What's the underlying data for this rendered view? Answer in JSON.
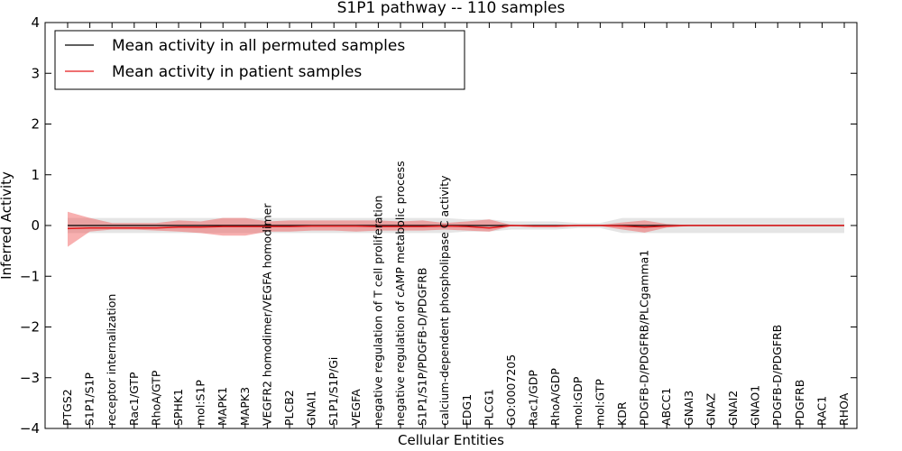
{
  "chart_data": {
    "type": "line",
    "title": "S1P1 pathway -- 110 samples",
    "xlabel": "Cellular Entities",
    "ylabel": "Inferred Activity",
    "ylim": [
      -4,
      4
    ],
    "yticks": [
      -4,
      -3,
      -2,
      -1,
      0,
      1,
      2,
      3,
      4
    ],
    "ytick_labels": [
      "−4",
      "−3",
      "−2",
      "−1",
      "0",
      "1",
      "2",
      "3",
      "4"
    ],
    "reference_line": 0,
    "legend": {
      "position": "top-left",
      "entries": [
        {
          "label": "Mean activity in all permuted samples",
          "color": "#000000"
        },
        {
          "label": "Mean activity in patient samples",
          "color": "#e31a1c"
        }
      ]
    },
    "categories": [
      "PTGS2",
      "S1P1/S1P",
      "receptor internalization",
      "Rac1/GTP",
      "RhoA/GTP",
      "SPHK1",
      "mol:S1P",
      "MAPK1",
      "MAPK3",
      "VEGFR2 homodimer/VEGFA homodimer",
      "PLCB2",
      "GNAI1",
      "S1P1/S1P/Gi",
      "VEGFA",
      "negative regulation of T cell proliferation",
      "negative regulation of cAMP metabolic process",
      "S1P1/S1P/PDGFB-D/PDGFRB",
      "calcium-dependent phospholipase C activity",
      "EDG1",
      "PLCG1",
      "GO:0007205",
      "Rac1/GDP",
      "RhoA/GDP",
      "mol:GDP",
      "mol:GTP",
      "KDR",
      "PDGFB-D/PDGFRB/PLCgamma1",
      "ABCC1",
      "GNAI3",
      "GNAZ",
      "GNAI2",
      "GNAO1",
      "PDGFB-D/PDGFRB",
      "PDGFRB",
      "RAC1",
      "RHOA"
    ],
    "series": [
      {
        "name": "Mean activity in all permuted samples",
        "color": "#000000",
        "values": [
          0.0,
          0.0,
          0.0,
          0.0,
          0.0,
          0.0,
          0.0,
          0.0,
          0.0,
          0.0,
          0.0,
          0.0,
          0.0,
          0.0,
          0.0,
          0.0,
          0.0,
          0.0,
          0.0,
          0.0,
          0.0,
          0.0,
          0.0,
          0.0,
          0.0,
          0.0,
          0.0,
          0.0,
          0.0,
          0.0,
          0.0,
          0.0,
          0.0,
          0.0,
          0.0,
          0.0
        ],
        "lower": [
          -0.15,
          -0.15,
          -0.15,
          -0.15,
          -0.15,
          -0.15,
          -0.15,
          -0.15,
          -0.15,
          -0.15,
          -0.15,
          -0.15,
          -0.15,
          -0.15,
          -0.15,
          -0.15,
          -0.15,
          -0.15,
          -0.12,
          -0.12,
          -0.08,
          -0.08,
          -0.08,
          -0.05,
          -0.05,
          -0.15,
          -0.15,
          -0.15,
          -0.15,
          -0.15,
          -0.15,
          -0.15,
          -0.15,
          -0.15,
          -0.15,
          -0.15
        ],
        "upper": [
          0.15,
          0.15,
          0.15,
          0.15,
          0.15,
          0.15,
          0.15,
          0.15,
          0.15,
          0.15,
          0.15,
          0.15,
          0.15,
          0.15,
          0.15,
          0.15,
          0.15,
          0.15,
          0.12,
          0.12,
          0.08,
          0.08,
          0.08,
          0.05,
          0.05,
          0.15,
          0.15,
          0.15,
          0.15,
          0.15,
          0.15,
          0.15,
          0.15,
          0.15,
          0.15,
          0.15
        ]
      },
      {
        "name": "Mean activity in patient samples",
        "color": "#e31a1c",
        "values": [
          -0.06,
          -0.05,
          -0.05,
          -0.05,
          -0.05,
          -0.03,
          -0.03,
          -0.02,
          -0.02,
          -0.02,
          -0.02,
          -0.01,
          -0.01,
          -0.01,
          -0.02,
          -0.02,
          -0.02,
          -0.01,
          -0.02,
          -0.05,
          0.0,
          -0.01,
          -0.01,
          0.0,
          0.0,
          -0.01,
          -0.03,
          -0.01,
          0.0,
          0.0,
          0.0,
          0.0,
          0.0,
          0.0,
          0.0,
          0.0
        ],
        "lower": [
          -0.42,
          -0.12,
          -0.08,
          -0.08,
          -0.1,
          -0.12,
          -0.15,
          -0.2,
          -0.2,
          -0.12,
          -0.12,
          -0.1,
          -0.1,
          -0.12,
          -0.1,
          -0.1,
          -0.1,
          -0.08,
          -0.1,
          -0.12,
          -0.01,
          -0.03,
          -0.03,
          -0.01,
          -0.01,
          -0.08,
          -0.14,
          -0.04,
          -0.01,
          -0.01,
          -0.01,
          -0.01,
          -0.01,
          -0.01,
          -0.01,
          -0.01
        ],
        "upper": [
          0.27,
          0.15,
          0.05,
          0.05,
          0.05,
          0.1,
          0.08,
          0.15,
          0.15,
          0.08,
          0.1,
          0.1,
          0.1,
          0.1,
          0.1,
          0.08,
          0.1,
          0.05,
          0.08,
          0.12,
          0.01,
          0.01,
          0.01,
          0.01,
          0.01,
          0.06,
          0.1,
          0.03,
          0.01,
          0.01,
          0.01,
          0.01,
          0.01,
          0.01,
          0.01,
          0.01
        ]
      }
    ]
  }
}
